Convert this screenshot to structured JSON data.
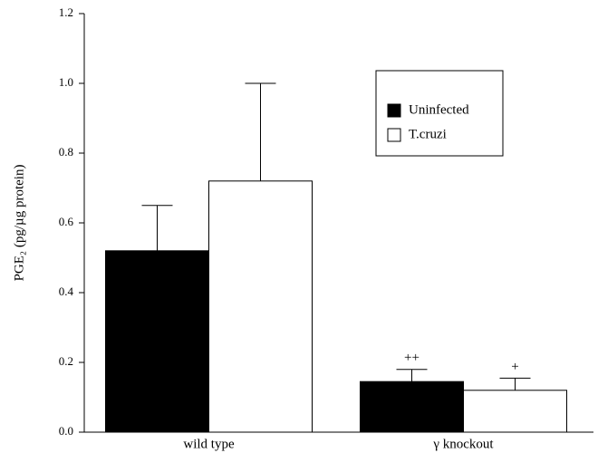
{
  "chart_data": {
    "type": "bar",
    "y_label": "PGE₂ (pg/µg protein)",
    "categories": [
      "wild type",
      "γ knockout"
    ],
    "series": [
      {
        "name": "Uninfected",
        "color": "#000000",
        "values": [
          0.52,
          0.145
        ],
        "errors": [
          0.13,
          0.035
        ],
        "annotations": [
          null,
          "++"
        ]
      },
      {
        "name": "T.cruzi",
        "color": "#ffffff",
        "values": [
          0.72,
          0.12
        ],
        "errors": [
          0.28,
          0.035
        ],
        "annotations": [
          null,
          "+"
        ]
      }
    ],
    "ylim": [
      0,
      1.2
    ],
    "yticks": [
      {
        "value": 0,
        "label": "0.0"
      },
      0.2,
      0.4,
      0.6,
      0.8,
      {
        "value": 1,
        "label": "1.0"
      },
      1.2
    ],
    "legend": "upper right"
  }
}
